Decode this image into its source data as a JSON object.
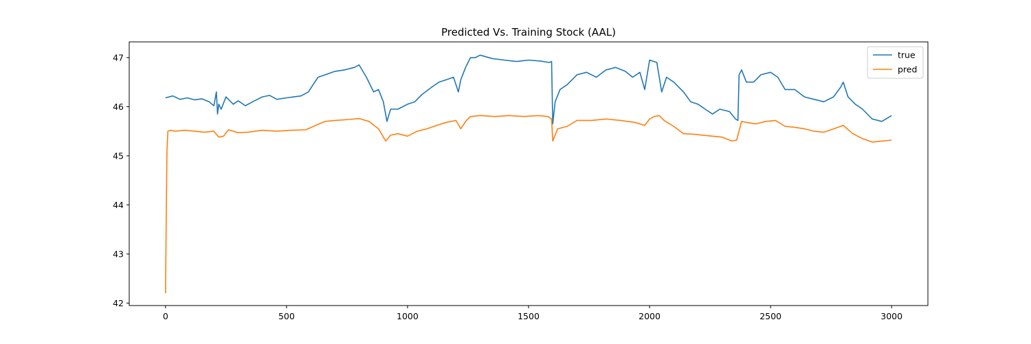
{
  "chart_data": {
    "type": "line",
    "title": "Predicted Vs. Training Stock (AAL)",
    "xlabel": "",
    "ylabel": "",
    "xlim": [
      -150,
      3150
    ],
    "ylim": [
      41.95,
      47.32
    ],
    "xticks": [
      0,
      500,
      1000,
      1500,
      2000,
      2500,
      3000
    ],
    "yticks": [
      42,
      43,
      44,
      45,
      46,
      47
    ],
    "grid": false,
    "legend": {
      "position": "top-right",
      "entries": [
        "true",
        "pred"
      ]
    },
    "colors": {
      "true": "#1f77b4",
      "pred": "#ff7f0e"
    },
    "series": [
      {
        "name": "true",
        "x": [
          0,
          30,
          60,
          90,
          120,
          150,
          180,
          200,
          210,
          215,
          220,
          230,
          250,
          280,
          300,
          330,
          360,
          400,
          430,
          460,
          500,
          530,
          560,
          590,
          610,
          630,
          660,
          700,
          740,
          780,
          800,
          830,
          860,
          880,
          900,
          915,
          930,
          960,
          1000,
          1030,
          1060,
          1100,
          1130,
          1160,
          1190,
          1210,
          1220,
          1240,
          1260,
          1280,
          1300,
          1350,
          1400,
          1450,
          1500,
          1550,
          1585,
          1595,
          1600,
          1610,
          1630,
          1660,
          1700,
          1740,
          1780,
          1820,
          1860,
          1900,
          1930,
          1960,
          1980,
          2000,
          2030,
          2050,
          2070,
          2100,
          2140,
          2170,
          2200,
          2230,
          2260,
          2290,
          2330,
          2355,
          2365,
          2370,
          2380,
          2400,
          2430,
          2460,
          2500,
          2530,
          2560,
          2600,
          2640,
          2680,
          2720,
          2760,
          2790,
          2800,
          2820,
          2850,
          2880,
          2920,
          2960,
          3000
        ],
        "y": [
          46.18,
          46.22,
          46.15,
          46.18,
          46.14,
          46.16,
          46.1,
          46.02,
          46.3,
          45.85,
          46.05,
          45.95,
          46.2,
          46.05,
          46.12,
          46.02,
          46.1,
          46.2,
          46.23,
          46.15,
          46.18,
          46.2,
          46.22,
          46.3,
          46.45,
          46.6,
          46.65,
          46.72,
          46.75,
          46.8,
          46.85,
          46.6,
          46.3,
          46.35,
          46.1,
          45.7,
          45.95,
          45.95,
          46.05,
          46.1,
          46.25,
          46.4,
          46.5,
          46.55,
          46.6,
          46.3,
          46.55,
          46.8,
          47.0,
          47.0,
          47.05,
          46.98,
          46.95,
          46.92,
          46.95,
          46.93,
          46.9,
          46.92,
          45.65,
          46.1,
          46.35,
          46.45,
          46.65,
          46.7,
          46.6,
          46.75,
          46.8,
          46.72,
          46.6,
          46.7,
          46.35,
          46.95,
          46.9,
          46.3,
          46.6,
          46.5,
          46.3,
          46.1,
          46.05,
          45.95,
          45.85,
          45.95,
          45.9,
          45.75,
          45.72,
          46.65,
          46.75,
          46.5,
          46.5,
          46.65,
          46.7,
          46.6,
          46.35,
          46.35,
          46.2,
          46.15,
          46.1,
          46.2,
          46.4,
          46.5,
          46.2,
          46.05,
          45.95,
          45.75,
          45.7,
          45.82
        ]
      },
      {
        "name": "pred",
        "x": [
          0,
          3,
          6,
          10,
          20,
          40,
          80,
          120,
          160,
          200,
          220,
          240,
          260,
          300,
          340,
          400,
          460,
          520,
          580,
          620,
          660,
          700,
          760,
          800,
          840,
          880,
          910,
          930,
          960,
          1000,
          1040,
          1080,
          1120,
          1160,
          1200,
          1220,
          1240,
          1260,
          1300,
          1360,
          1420,
          1480,
          1540,
          1580,
          1595,
          1600,
          1620,
          1660,
          1700,
          1760,
          1820,
          1880,
          1940,
          1980,
          2000,
          2020,
          2040,
          2060,
          2100,
          2140,
          2180,
          2220,
          2260,
          2300,
          2340,
          2360,
          2380,
          2400,
          2440,
          2480,
          2520,
          2560,
          2600,
          2640,
          2680,
          2720,
          2760,
          2790,
          2800,
          2840,
          2880,
          2920,
          2960,
          3000
        ],
        "y": [
          42.2,
          43.8,
          45.1,
          45.5,
          45.52,
          45.5,
          45.52,
          45.5,
          45.48,
          45.5,
          45.38,
          45.4,
          45.53,
          45.47,
          45.48,
          45.52,
          45.5,
          45.52,
          45.53,
          45.62,
          45.7,
          45.72,
          45.74,
          45.76,
          45.7,
          45.55,
          45.3,
          45.42,
          45.45,
          45.4,
          45.5,
          45.55,
          45.62,
          45.68,
          45.72,
          45.55,
          45.7,
          45.8,
          45.82,
          45.8,
          45.82,
          45.8,
          45.82,
          45.8,
          45.75,
          45.3,
          45.55,
          45.6,
          45.72,
          45.72,
          45.75,
          45.72,
          45.68,
          45.62,
          45.75,
          45.8,
          45.82,
          45.72,
          45.6,
          45.45,
          45.44,
          45.42,
          45.4,
          45.38,
          45.3,
          45.32,
          45.7,
          45.68,
          45.65,
          45.7,
          45.72,
          45.6,
          45.58,
          45.55,
          45.5,
          45.48,
          45.55,
          45.6,
          45.62,
          45.45,
          45.35,
          45.28,
          45.3,
          45.32
        ]
      }
    ]
  }
}
